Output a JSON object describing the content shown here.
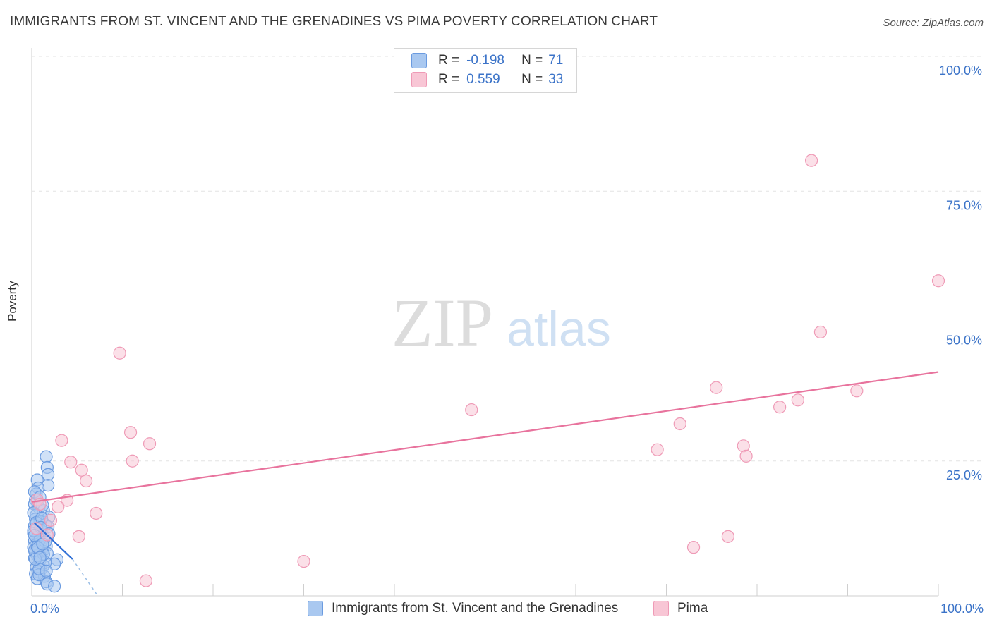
{
  "header": {
    "title": "IMMIGRANTS FROM ST. VINCENT AND THE GRENADINES VS PIMA POVERTY CORRELATION CHART",
    "source": "Source: ZipAtlas.com"
  },
  "legend": {
    "rows": [
      {
        "r_label": "R =",
        "r_value": "-0.198",
        "n_label": "N =",
        "n_value": "71",
        "color": "#a9c8f0",
        "border": "#6b9be0"
      },
      {
        "r_label": "R =",
        "r_value": "0.559",
        "n_label": "N =",
        "n_value": "33",
        "color": "#f8c6d5",
        "border": "#ef9ab6"
      }
    ]
  },
  "bottom_legend": [
    {
      "label": "Immigrants from St. Vincent and the Grenadines",
      "color": "#a9c8f0",
      "border": "#6b9be0"
    },
    {
      "label": "Pima",
      "color": "#f8c6d5",
      "border": "#ef9ab6"
    }
  ],
  "watermark": {
    "zip": "ZIP",
    "atlas": "atlas"
  },
  "chart_data": {
    "type": "scatter",
    "title": "IMMIGRANTS FROM ST. VINCENT AND THE GRENADINES VS PIMA POVERTY CORRELATION CHART",
    "xlabel": "",
    "ylabel": "Poverty",
    "xlim": [
      0,
      100
    ],
    "ylim": [
      0,
      100
    ],
    "x_tick_labels": [
      {
        "value": 0,
        "label": "0.0%"
      },
      {
        "value": 100,
        "label": "100.0%"
      }
    ],
    "y_tick_labels": [
      {
        "value": 25,
        "label": "25.0%"
      },
      {
        "value": 50,
        "label": "50.0%"
      },
      {
        "value": 75,
        "label": "75.0%"
      },
      {
        "value": 100,
        "label": "100.0%"
      }
    ],
    "grid": true,
    "legend_position": "top-center",
    "series": [
      {
        "name": "Immigrants from St. Vincent and the Grenadines",
        "color": "#a9c8f0",
        "stroke": "#6b9be0",
        "r": -0.198,
        "n": 71,
        "trend": {
          "x": [
            0.3,
            4.5
          ],
          "y": [
            13.5,
            6.8
          ],
          "color": "#2f6fd6"
        },
        "trend_ext": {
          "x": [
            4.5,
            7.2
          ],
          "y": [
            6.8,
            0.2
          ]
        },
        "points": [
          [
            1.6,
            25.8
          ],
          [
            1.7,
            23.8
          ],
          [
            1.8,
            22.5
          ],
          [
            1.8,
            20.5
          ],
          [
            0.6,
            21.5
          ],
          [
            0.7,
            20.0
          ],
          [
            0.5,
            18.9
          ],
          [
            0.4,
            17.8
          ],
          [
            0.3,
            17.0
          ],
          [
            0.8,
            16.3
          ],
          [
            1.3,
            15.8
          ],
          [
            0.5,
            15.0
          ],
          [
            1.9,
            14.6
          ],
          [
            0.4,
            14.2
          ],
          [
            0.9,
            13.8
          ],
          [
            1.5,
            13.2
          ],
          [
            0.3,
            13.0
          ],
          [
            0.6,
            12.4
          ],
          [
            1.1,
            12.0
          ],
          [
            0.2,
            11.6
          ],
          [
            0.7,
            11.0
          ],
          [
            1.4,
            10.8
          ],
          [
            0.3,
            10.2
          ],
          [
            1.0,
            9.9
          ],
          [
            0.5,
            9.5
          ],
          [
            1.6,
            9.2
          ],
          [
            0.2,
            9.0
          ],
          [
            0.8,
            8.6
          ],
          [
            1.2,
            8.3
          ],
          [
            0.4,
            8.0
          ],
          [
            1.7,
            7.9
          ],
          [
            0.6,
            7.5
          ],
          [
            1.0,
            7.2
          ],
          [
            0.3,
            7.0
          ],
          [
            2.8,
            6.7
          ],
          [
            0.9,
            6.5
          ],
          [
            2.5,
            5.9
          ],
          [
            1.3,
            5.6
          ],
          [
            0.5,
            5.3
          ],
          [
            1.0,
            4.9
          ],
          [
            0.7,
            4.5
          ],
          [
            0.4,
            4.1
          ],
          [
            1.4,
            3.6
          ],
          [
            0.6,
            3.2
          ],
          [
            1.6,
            2.6
          ],
          [
            1.7,
            2.2
          ],
          [
            2.5,
            1.8
          ],
          [
            0.3,
            19.3
          ],
          [
            0.9,
            18.3
          ],
          [
            1.2,
            16.8
          ],
          [
            0.2,
            15.4
          ],
          [
            1.8,
            12.8
          ],
          [
            0.9,
            10.5
          ],
          [
            0.3,
            8.4
          ],
          [
            1.5,
            6.2
          ],
          [
            0.8,
            3.9
          ],
          [
            1.9,
            11.5
          ],
          [
            0.5,
            13.6
          ],
          [
            1.1,
            14.4
          ],
          [
            0.6,
            9.1
          ],
          [
            1.3,
            7.7
          ],
          [
            0.2,
            12.1
          ],
          [
            0.8,
            5.0
          ],
          [
            1.5,
            10.0
          ],
          [
            0.4,
            6.8
          ],
          [
            1.0,
            12.7
          ],
          [
            0.7,
            8.9
          ],
          [
            1.6,
            4.6
          ],
          [
            0.3,
            11.2
          ],
          [
            1.2,
            9.6
          ],
          [
            0.9,
            7.1
          ]
        ]
      },
      {
        "name": "Pima",
        "color": "#f8c6d5",
        "stroke": "#ef9ab6",
        "r": 0.559,
        "n": 33,
        "trend": {
          "x": [
            0,
            100
          ],
          "y": [
            17.4,
            41.5
          ],
          "color": "#e8739d"
        },
        "points": [
          [
            86.0,
            80.7
          ],
          [
            100.0,
            58.4
          ],
          [
            87.0,
            48.9
          ],
          [
            9.7,
            45.0
          ],
          [
            75.5,
            38.6
          ],
          [
            91.0,
            38.0
          ],
          [
            84.5,
            36.3
          ],
          [
            48.5,
            34.5
          ],
          [
            82.5,
            35.0
          ],
          [
            71.5,
            31.9
          ],
          [
            10.9,
            30.3
          ],
          [
            3.3,
            28.8
          ],
          [
            13.0,
            28.2
          ],
          [
            78.5,
            27.8
          ],
          [
            69.0,
            27.1
          ],
          [
            78.8,
            25.9
          ],
          [
            4.3,
            24.8
          ],
          [
            11.1,
            25.0
          ],
          [
            5.5,
            23.3
          ],
          [
            6.0,
            21.3
          ],
          [
            0.6,
            17.8
          ],
          [
            3.9,
            17.7
          ],
          [
            0.9,
            17.0
          ],
          [
            2.9,
            16.5
          ],
          [
            7.1,
            15.3
          ],
          [
            2.1,
            14.0
          ],
          [
            0.5,
            12.5
          ],
          [
            1.7,
            11.3
          ],
          [
            5.2,
            11.0
          ],
          [
            76.8,
            11.0
          ],
          [
            73.0,
            9.0
          ],
          [
            30.0,
            6.4
          ],
          [
            12.6,
            2.8
          ]
        ]
      }
    ]
  }
}
